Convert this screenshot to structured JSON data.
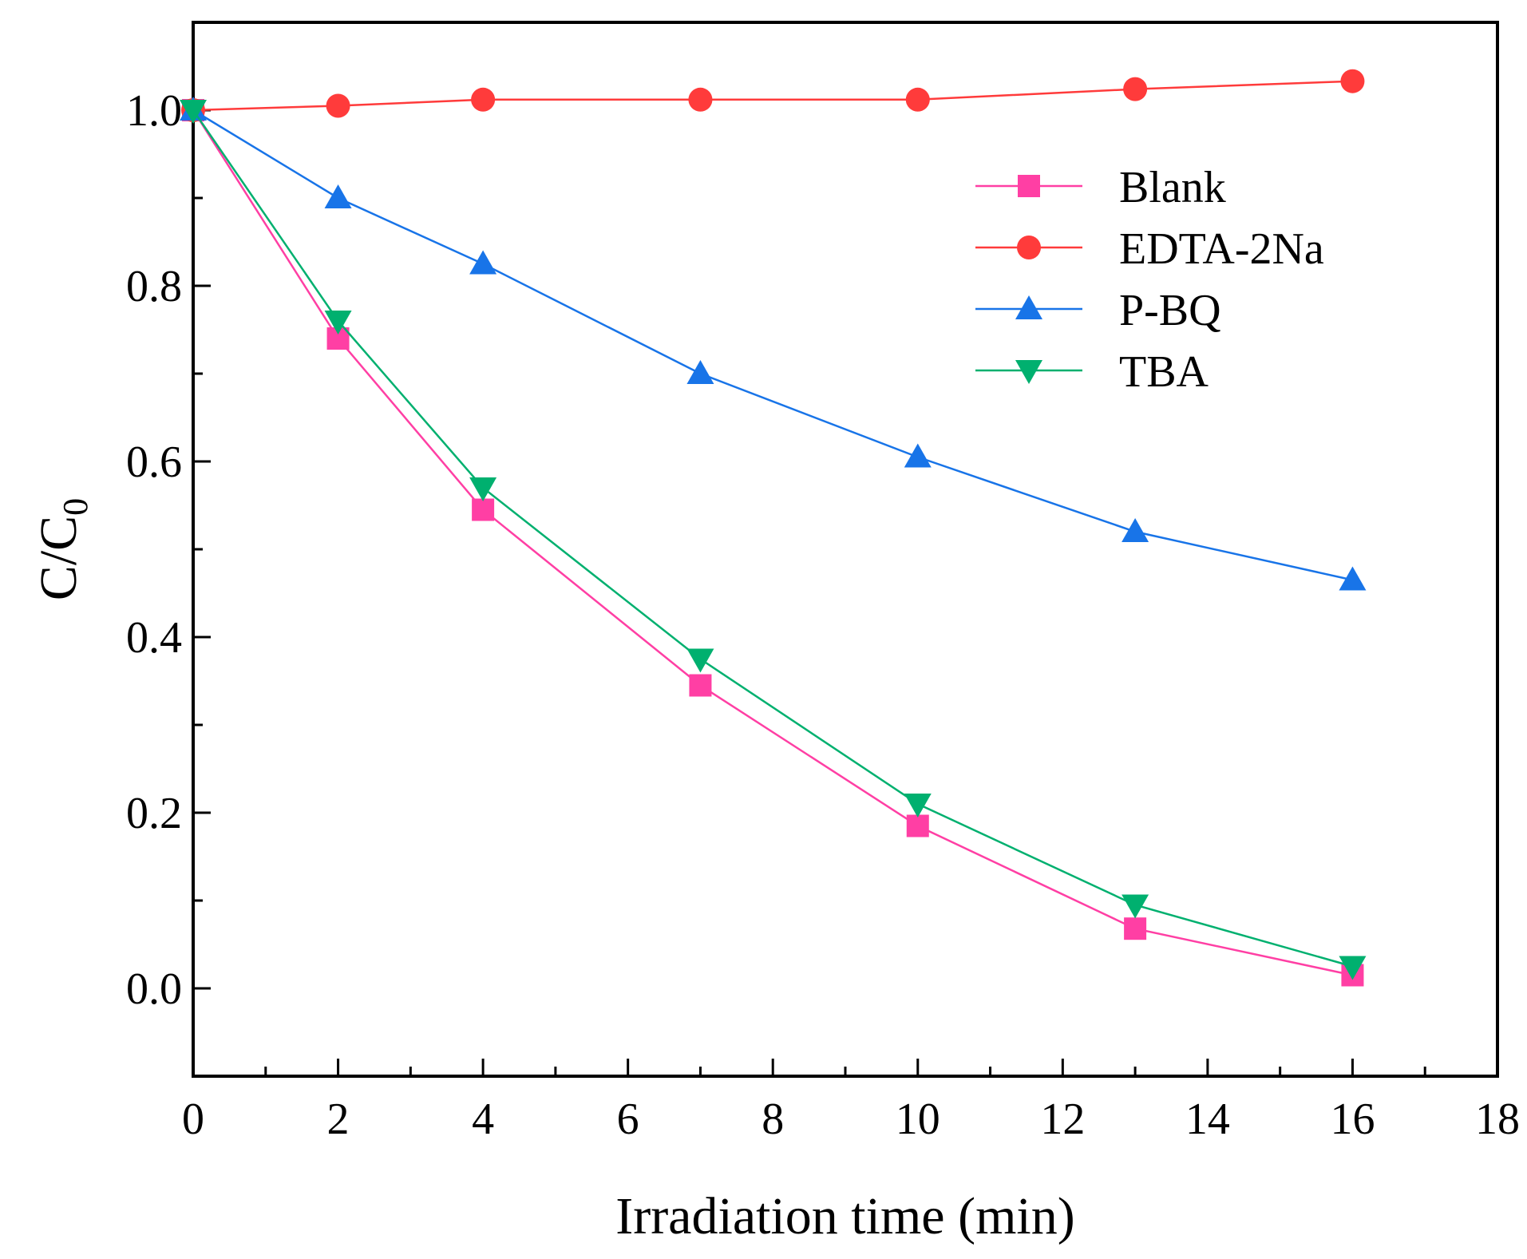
{
  "chart_data": {
    "type": "line",
    "title": "",
    "xlabel": "Irradiation time (min)",
    "ylabel": {
      "main": "C/C",
      "subscript": "0"
    },
    "xlim": [
      0,
      18
    ],
    "ylim": [
      -0.1,
      1.1
    ],
    "x_ticks": [
      "0",
      "2",
      "4",
      "6",
      "8",
      "10",
      "12",
      "14",
      "16",
      "18"
    ],
    "y_ticks": [
      "0.0",
      "0.2",
      "0.4",
      "0.6",
      "0.8",
      "1.0"
    ],
    "grid": false,
    "legend_position": "top-right",
    "x": [
      0,
      2,
      4,
      7,
      10,
      13,
      16
    ],
    "series": [
      {
        "name": "Blank",
        "color": "#ff3fa4",
        "marker": "square",
        "values": [
          1.0,
          0.74,
          0.545,
          0.345,
          0.185,
          0.068,
          0.015
        ]
      },
      {
        "name": "EDTA-2Na",
        "color": "#ff3b3b",
        "marker": "circle",
        "values": [
          1.0,
          1.005,
          1.012,
          1.012,
          1.012,
          1.024,
          1.033
        ]
      },
      {
        "name": "P-BQ",
        "color": "#1874e8",
        "marker": "triangle-up",
        "values": [
          1.0,
          0.9,
          0.825,
          0.7,
          0.605,
          0.52,
          0.465
        ]
      },
      {
        "name": "TBA",
        "color": "#00b06f",
        "marker": "triangle-down",
        "values": [
          1.0,
          0.76,
          0.57,
          0.375,
          0.21,
          0.095,
          0.025
        ]
      }
    ]
  }
}
